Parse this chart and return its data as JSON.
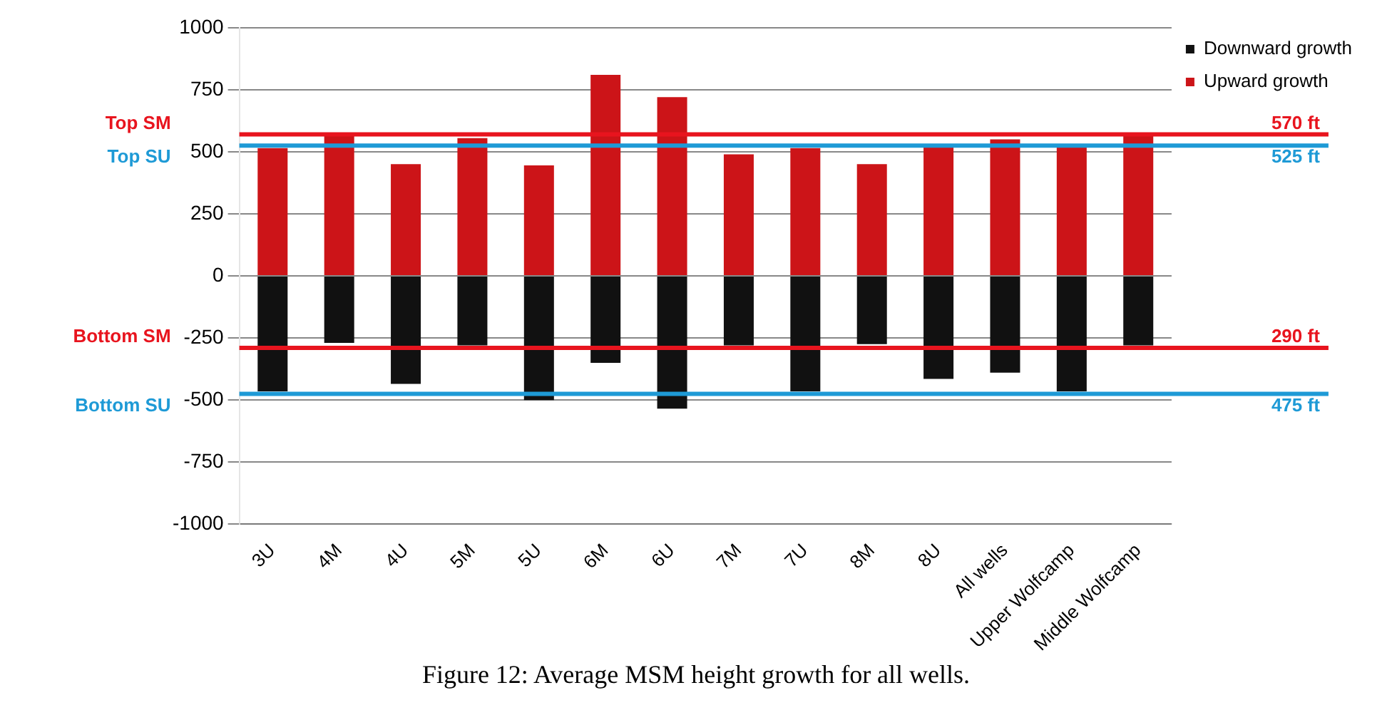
{
  "chart_data": {
    "type": "bar",
    "stacked": true,
    "categories": [
      "3U",
      "4M",
      "4U",
      "5M",
      "5U",
      "6M",
      "6U",
      "7M",
      "7U",
      "8M",
      "8U",
      "All wells",
      "Upper Wolfcamp",
      "Middle Wolfcamp"
    ],
    "series": [
      {
        "name": "Downward growth",
        "color": "#111111",
        "values": [
          -465,
          -270,
          -435,
          -280,
          -500,
          -350,
          -535,
          -280,
          -465,
          -275,
          -415,
          -390,
          -465,
          -280
        ]
      },
      {
        "name": "Upward growth",
        "color": "#cc1418",
        "values": [
          515,
          570,
          450,
          555,
          445,
          810,
          720,
          490,
          515,
          450,
          525,
          550,
          520,
          570
        ]
      }
    ],
    "ylim": [
      -1000,
      1000
    ],
    "yticks": [
      -1000,
      -750,
      -500,
      -250,
      0,
      250,
      500,
      750,
      1000
    ],
    "grid": "y",
    "legend": "right",
    "ref_lines": [
      {
        "axis": "y",
        "value": 570,
        "label": "570 ft",
        "color": "#e8141e"
      },
      {
        "axis": "y",
        "value": 525,
        "label": "525 ft",
        "color": "#1e9ad6"
      },
      {
        "axis": "y",
        "value": -290,
        "label": "290 ft",
        "color": "#e8141e"
      },
      {
        "axis": "y",
        "value": -475,
        "label": "475 ft",
        "color": "#1e9ad6"
      }
    ],
    "annotations": [
      "Top SM",
      "Top SU",
      "Bottom SM",
      "Bottom SU",
      "Figure 12: Average MSM height growth for all wells."
    ]
  }
}
